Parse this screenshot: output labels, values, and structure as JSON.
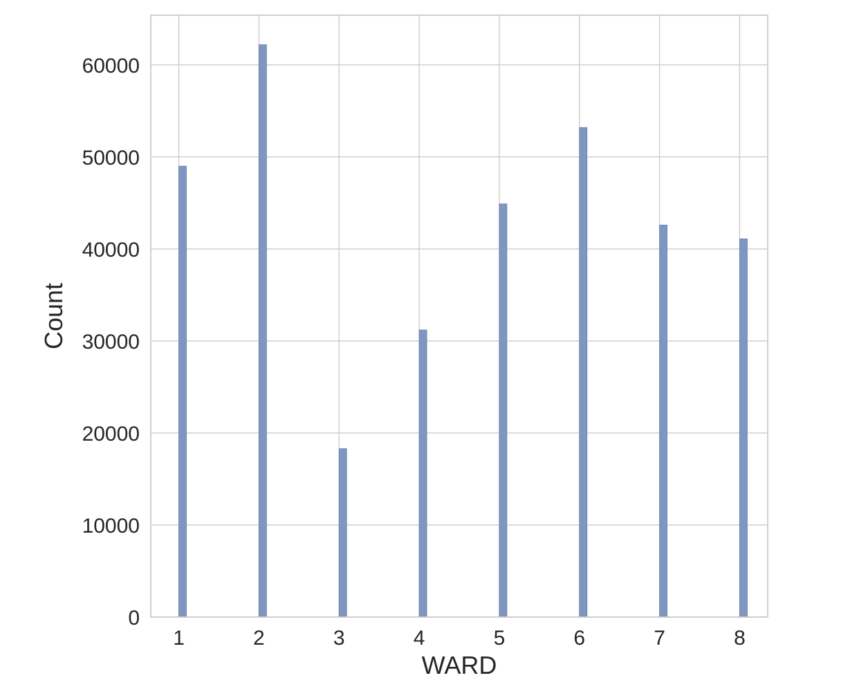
{
  "chart_data": {
    "type": "bar",
    "xlabel": "WARD",
    "ylabel": "Count",
    "categories": [
      1,
      2,
      3,
      4,
      5,
      6,
      7,
      8
    ],
    "values": [
      49000,
      62200,
      18300,
      31200,
      44900,
      53200,
      42600,
      41100
    ],
    "xlim": [
      0.65,
      8.35
    ],
    "ylim": [
      0,
      65400
    ],
    "xticks": [
      "1",
      "2",
      "3",
      "4",
      "5",
      "6",
      "7",
      "8"
    ],
    "yticks": [
      0,
      10000,
      20000,
      30000,
      40000,
      50000,
      60000
    ],
    "ytick_labels": [
      "0",
      "10000",
      "20000",
      "30000",
      "40000",
      "50000",
      "60000"
    ],
    "grid": true,
    "bar_color": "#7f95c2",
    "bar_edge_color": "#6b82b3",
    "grid_color": "#cccccc"
  }
}
